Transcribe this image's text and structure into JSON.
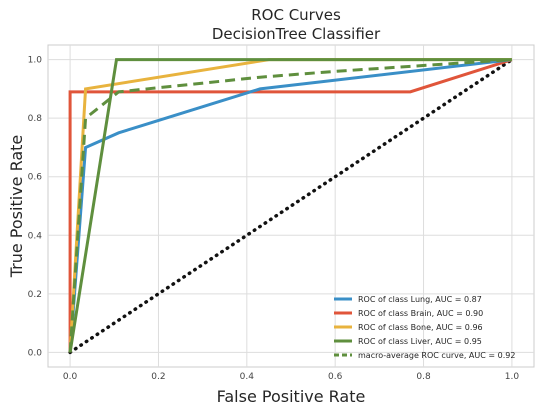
{
  "chart_data": {
    "type": "line",
    "title": "ROC Curves",
    "subtitle": "DecisionTree Classifier",
    "xlabel": "False Positive Rate",
    "ylabel": "True Positive Rate",
    "xlim": [
      -0.05,
      1.05
    ],
    "ylim": [
      -0.05,
      1.05
    ],
    "xticks": [
      "0.0",
      "0.2",
      "0.4",
      "0.6",
      "0.8",
      "1.0"
    ],
    "yticks": [
      "0.0",
      "0.2",
      "0.4",
      "0.6",
      "0.8",
      "1.0"
    ],
    "grid": true,
    "legend_position": "lower-right",
    "series": [
      {
        "name": "ROC of class Lung, AUC = 0.87",
        "color": "#3a8fc7",
        "dash": "solid",
        "x": [
          0.0,
          0.035,
          0.11,
          0.43,
          1.0
        ],
        "y": [
          0.0,
          0.7,
          0.75,
          0.9,
          1.0
        ]
      },
      {
        "name": "ROC of class Brain, AUC = 0.90",
        "color": "#e0553a",
        "dash": "solid",
        "x": [
          0.0,
          0.0,
          0.77,
          1.0
        ],
        "y": [
          0.0,
          0.89,
          0.89,
          1.0
        ]
      },
      {
        "name": "ROC of class Bone, AUC = 0.96",
        "color": "#e8b33e",
        "dash": "solid",
        "x": [
          0.0,
          0.035,
          0.45,
          1.0
        ],
        "y": [
          0.0,
          0.9,
          1.0,
          1.0
        ]
      },
      {
        "name": "ROC of class Liver, AUC = 0.95",
        "color": "#5f8f3e",
        "dash": "solid",
        "x": [
          0.0,
          0.105,
          1.0
        ],
        "y": [
          0.0,
          1.0,
          1.0
        ]
      },
      {
        "name": "macro-average ROC curve, AUC = 0.92",
        "color": "#5f8f3e",
        "dash": "dashed",
        "x": [
          0.0,
          0.035,
          0.11,
          0.43,
          0.6,
          1.0
        ],
        "y": [
          0.0,
          0.8,
          0.89,
          0.94,
          0.96,
          1.0
        ]
      }
    ],
    "diagonal": {
      "color": "#111111",
      "style": "dotted",
      "x": [
        0.0,
        1.0
      ],
      "y": [
        0.0,
        1.0
      ]
    }
  }
}
